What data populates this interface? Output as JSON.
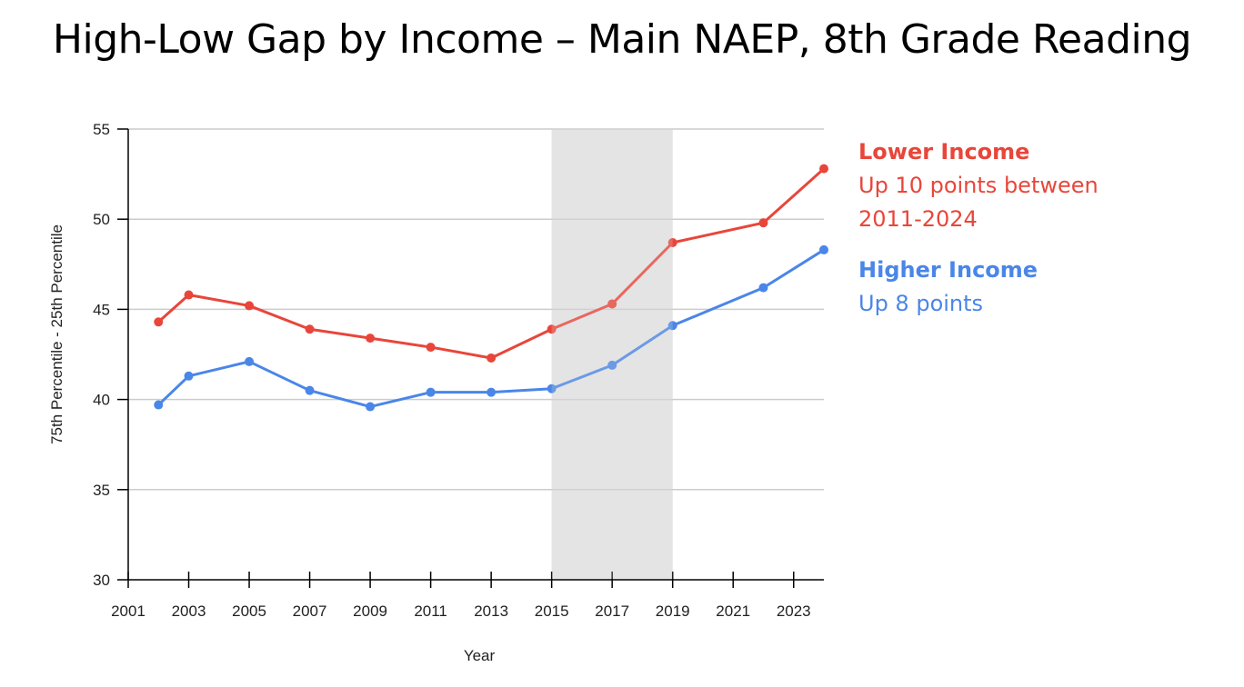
{
  "title": "High-Low Gap by Income – Main NAEP, 8th Grade Reading",
  "colors": {
    "lower": "#e8463a",
    "higher": "#4a86e8",
    "shade": "#e5e5e5",
    "grid": "#cccccc",
    "axis": "#000000"
  },
  "legend": {
    "lower": {
      "name": "Lower Income",
      "line1": "Up 10 points between",
      "line2": "2011-2024"
    },
    "higher": {
      "name": "Higher Income",
      "line1": "Up 8 points"
    }
  },
  "chart_data": {
    "type": "line",
    "xlabel": "Year",
    "ylabel": "75th Percentile - 25th Percentile",
    "xlim": [
      2001,
      2024
    ],
    "ylim": [
      30,
      55
    ],
    "xticks": [
      2001,
      2003,
      2005,
      2007,
      2009,
      2011,
      2013,
      2015,
      2017,
      2019,
      2021,
      2023
    ],
    "yticks": [
      30,
      35,
      40,
      45,
      50,
      55
    ],
    "grid": true,
    "shaded_region": [
      2015,
      2019
    ],
    "series": [
      {
        "name": "Lower Income",
        "color": "#e8463a",
        "x": [
          2002,
          2003,
          2005,
          2007,
          2009,
          2011,
          2013,
          2015,
          2017,
          2019,
          2022,
          2024
        ],
        "values": [
          44.3,
          45.8,
          45.2,
          43.9,
          43.4,
          42.9,
          42.3,
          43.9,
          45.3,
          48.7,
          49.8,
          52.8
        ]
      },
      {
        "name": "Higher Income",
        "color": "#4a86e8",
        "x": [
          2002,
          2003,
          2005,
          2007,
          2009,
          2011,
          2013,
          2015,
          2017,
          2019,
          2022,
          2024
        ],
        "values": [
          39.7,
          41.3,
          42.1,
          40.5,
          39.6,
          40.4,
          40.4,
          40.6,
          41.9,
          44.1,
          46.2,
          48.3
        ]
      }
    ]
  }
}
